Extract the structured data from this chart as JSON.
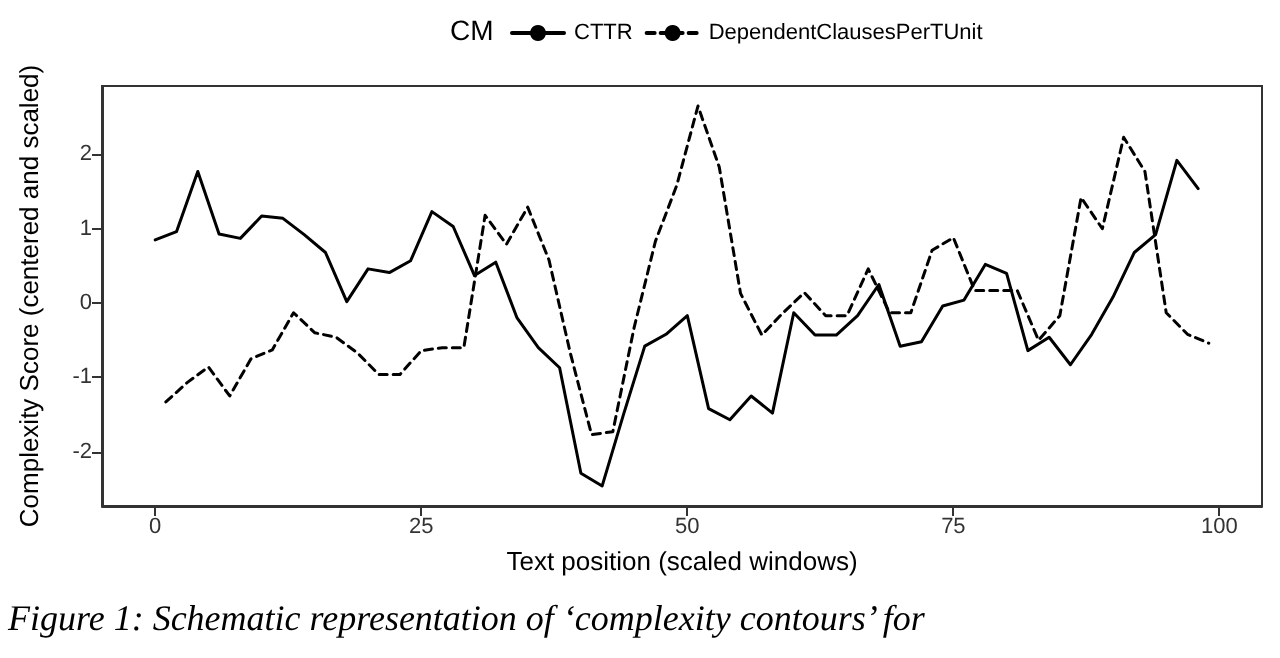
{
  "chart_data": {
    "type": "line",
    "xlabel": "Text position (scaled windows)",
    "ylabel": "Complexity Score (centered and scaled)",
    "legend_title": "CM",
    "legend": "top",
    "xlim": [
      -5,
      104
    ],
    "xticks": [
      0,
      25,
      50,
      75,
      100
    ],
    "ylim": [
      -2.73,
      2.92
    ],
    "yticks": [
      -2,
      -1,
      0,
      1,
      2
    ],
    "grid": false,
    "marker": "none",
    "annotations": [
      "Figure 1: Schematic representation of ‘complexity contours’ for"
    ],
    "series": [
      {
        "name": "CTTR",
        "color": "#000000",
        "line_style": "solid",
        "x": [
          0,
          2,
          4,
          6,
          8,
          10,
          12,
          14,
          16,
          18,
          20,
          22,
          24,
          26,
          28,
          30,
          32,
          34,
          36,
          38,
          40,
          42,
          44,
          46,
          48,
          50,
          52,
          54,
          56,
          58,
          60,
          62,
          64,
          66,
          68,
          70,
          72,
          74,
          76,
          78,
          80,
          82,
          84,
          86,
          88,
          90,
          92,
          94,
          96,
          98
        ],
        "values": [
          0.85,
          0.96,
          1.77,
          0.93,
          0.87,
          1.17,
          1.14,
          0.92,
          0.68,
          0.02,
          0.46,
          0.41,
          0.57,
          1.23,
          1.03,
          0.37,
          0.55,
          -0.2,
          -0.6,
          -0.87,
          -2.29,
          -2.46,
          -1.5,
          -0.58,
          -0.42,
          -0.17,
          -1.42,
          -1.57,
          -1.25,
          -1.48,
          -0.13,
          -0.43,
          -0.43,
          -0.17,
          0.25,
          -0.58,
          -0.52,
          -0.04,
          0.04,
          0.52,
          0.4,
          -0.64,
          -0.46,
          -0.83,
          -0.42,
          0.08,
          0.68,
          0.92,
          1.92,
          1.54
        ]
      },
      {
        "name": "DependentClausesPerTUnit",
        "color": "#000000",
        "line_style": "dashed",
        "x": [
          1,
          3,
          5,
          7,
          9,
          11,
          13,
          15,
          17,
          19,
          21,
          23,
          25,
          27,
          29,
          31,
          33,
          35,
          37,
          39,
          41,
          43,
          45,
          47,
          49,
          51,
          53,
          55,
          57,
          59,
          61,
          63,
          65,
          67,
          69,
          71,
          73,
          75,
          77,
          79,
          81,
          83,
          85,
          87,
          89,
          91,
          93,
          95,
          97,
          99
        ],
        "values": [
          -1.33,
          -1.07,
          -0.86,
          -1.25,
          -0.75,
          -0.63,
          -0.13,
          -0.4,
          -0.46,
          -0.67,
          -0.96,
          -0.96,
          -0.64,
          -0.6,
          -0.6,
          1.18,
          0.79,
          1.29,
          0.58,
          -0.67,
          -1.77,
          -1.73,
          -0.33,
          0.83,
          1.58,
          2.65,
          1.83,
          0.13,
          -0.43,
          -0.13,
          0.14,
          -0.17,
          -0.17,
          0.46,
          -0.13,
          -0.13,
          0.71,
          0.88,
          0.17,
          0.17,
          0.17,
          -0.5,
          -0.17,
          1.42,
          1.0,
          2.23,
          1.77,
          -0.13,
          -0.42,
          -0.54
        ]
      }
    ]
  }
}
